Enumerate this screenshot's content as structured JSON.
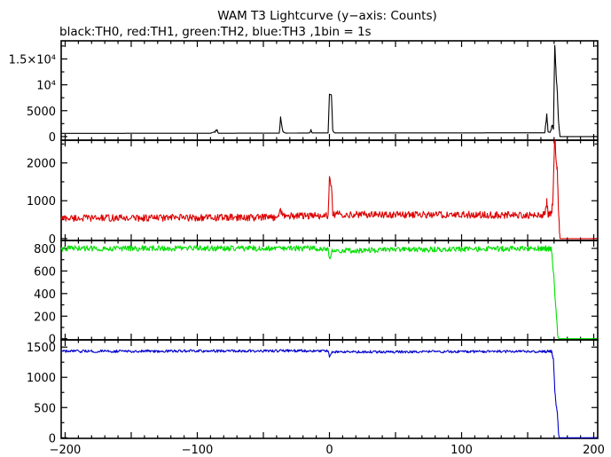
{
  "chart_data": {
    "type": "line",
    "title": "WAM T3 Lightcurve (y−axis: Counts)",
    "subtitle": "black:TH0, red:TH1, green:TH2, blue:TH3 ,1bin = 1s",
    "x_axis": {
      "range": [
        -203,
        203
      ],
      "ticks": [
        -200,
        -100,
        0,
        100,
        200
      ],
      "tick_labels": [
        "−200",
        "−100",
        "0",
        "100",
        "200"
      ]
    },
    "grid": false,
    "series": [
      {
        "name": "TH0",
        "color": "#000000",
        "ylim": [
          -700,
          18500
        ],
        "y_ticks": [
          0,
          5000,
          10000,
          15000
        ],
        "y_tick_labels": [
          "0",
          "5000",
          "10⁴",
          "1.5×10⁴"
        ],
        "points": [
          [
            -203,
            620
          ],
          [
            -90,
            640
          ],
          [
            -85,
            1100
          ],
          [
            -84,
            640
          ],
          [
            -38,
            660
          ],
          [
            -37,
            3600
          ],
          [
            -35,
            900
          ],
          [
            -33,
            660
          ],
          [
            -15,
            700
          ],
          [
            -14,
            1100
          ],
          [
            -13,
            700
          ],
          [
            -1,
            700
          ],
          [
            0,
            8200
          ],
          [
            1.5,
            8000
          ],
          [
            2.5,
            1100
          ],
          [
            4,
            700
          ],
          [
            163,
            720
          ],
          [
            164.5,
            4200
          ],
          [
            165.5,
            900
          ],
          [
            167,
            800
          ],
          [
            168.5,
            2200
          ],
          [
            169.5,
            1500
          ],
          [
            170.5,
            17800
          ],
          [
            171.5,
            12000
          ],
          [
            172.5,
            8200
          ],
          [
            173.5,
            2500
          ],
          [
            174.5,
            0
          ],
          [
            203,
            0
          ]
        ]
      },
      {
        "name": "TH1",
        "color": "#dd0000",
        "ylim": [
          -50,
          2600
        ],
        "y_ticks": [
          0,
          1000,
          2000
        ],
        "y_tick_labels": [
          "0",
          "1000",
          "2000"
        ],
        "points": [
          [
            -203,
            540
          ],
          [
            -40,
            560
          ],
          [
            -37,
            780
          ],
          [
            -35,
            600
          ],
          [
            -1,
            600
          ],
          [
            0,
            1550
          ],
          [
            1.5,
            1450
          ],
          [
            2.5,
            640
          ],
          [
            163,
            620
          ],
          [
            164.5,
            1000
          ],
          [
            165.5,
            650
          ],
          [
            168,
            660
          ],
          [
            169,
            1000
          ],
          [
            170.5,
            2800
          ],
          [
            171.5,
            2000
          ],
          [
            172.5,
            1800
          ],
          [
            173.5,
            600
          ],
          [
            174.5,
            0
          ],
          [
            203,
            0
          ]
        ]
      },
      {
        "name": "TH2",
        "color": "#00e000",
        "ylim": [
          -10,
          870
        ],
        "y_ticks": [
          0,
          200,
          400,
          600,
          800
        ],
        "y_tick_labels": [
          "0",
          "200",
          "400",
          "600",
          "800"
        ],
        "points": [
          [
            -203,
            800
          ],
          [
            -1,
            800
          ],
          [
            0,
            700
          ],
          [
            2,
            780
          ],
          [
            168,
            800
          ],
          [
            170,
            520
          ],
          [
            171,
            300
          ],
          [
            172,
            150
          ],
          [
            173,
            10
          ],
          [
            174,
            0
          ],
          [
            203,
            0
          ]
        ]
      },
      {
        "name": "TH3",
        "color": "#0000cc",
        "ylim": [
          -10,
          1620
        ],
        "y_ticks": [
          0,
          500,
          1000,
          1500
        ],
        "y_tick_labels": [
          "0",
          "500",
          "1000",
          "1500"
        ],
        "points": [
          [
            -203,
            1430
          ],
          [
            -1,
            1440
          ],
          [
            0,
            1330
          ],
          [
            2,
            1420
          ],
          [
            168,
            1430
          ],
          [
            169.5,
            1300
          ],
          [
            170.5,
            800
          ],
          [
            171.5,
            550
          ],
          [
            172.5,
            400
          ],
          [
            173.5,
            50
          ],
          [
            174,
            0
          ],
          [
            203,
            0
          ]
        ]
      }
    ]
  }
}
